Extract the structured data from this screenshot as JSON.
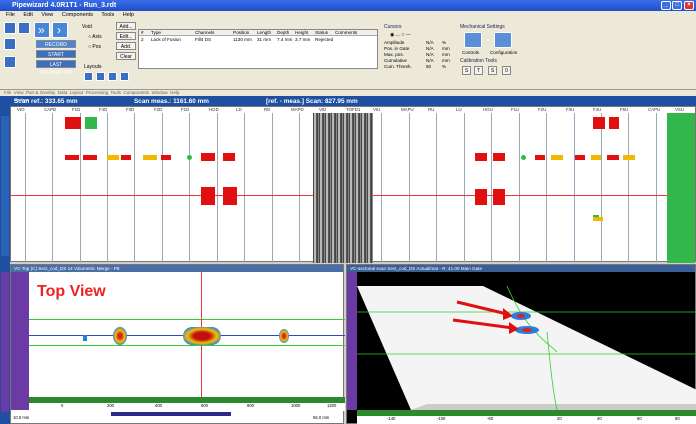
{
  "window": {
    "title": "Pipewizard 4.0R1T1 - Run_3.rdt"
  },
  "menu": [
    "File",
    "Edit",
    "View",
    "Components",
    "Tools",
    "Help"
  ],
  "toolbar": {
    "record_label": "RECORD",
    "start_inspection_label": "START INSPECTION",
    "last_calibration_label": "LAST CALIBRATION",
    "void_label": "Void",
    "axis_label": "Axis",
    "pos_label": "Pos",
    "layouts_label": "Layouts",
    "add_label": "Add...",
    "edit_label": "Edit...",
    "add_info_label": "Add. Info...",
    "clear_label": "Clear",
    "cursors_label": "Cursors",
    "mech_settings_label": "Mechanical Settings",
    "controls_label": "Controls",
    "configuration_label": "Configuration",
    "calib_tools_label": "Calibration Tools"
  },
  "defect_table": {
    "columns": [
      "#",
      "Type",
      "Channels",
      "Position",
      "Length",
      "Depth",
      "Height",
      "Status",
      "Comments"
    ],
    "rows": [
      [
        "2",
        "Lack of Fusion",
        "Fill4 DS",
        "1130 mm",
        "31 mm",
        "7.4 mm",
        "3.7 mm",
        "Rejected",
        ""
      ]
    ]
  },
  "cursor_readout": {
    "rows": [
      {
        "label": "Amplitude",
        "value": "N/A",
        "unit": "%"
      },
      {
        "label": "Pos. in Gate",
        "value": "N/A",
        "unit": "mm"
      },
      {
        "label": "Max. pos.",
        "value": "N/A",
        "unit": "mm"
      },
      {
        "label": "Cumulative",
        "value": "N/A",
        "unit": "mm"
      },
      {
        "label": "Cum. Thresh.",
        "value": "50",
        "unit": "%"
      }
    ]
  },
  "tabbar": [
    "File",
    "View",
    "Part & Overlay",
    "Data",
    "Layout",
    "Processing",
    "Tools",
    "Components",
    "Window",
    "Help"
  ],
  "scan_info": {
    "medium_label": "Medium",
    "scan_ref": "Scan ref.: 333.65 mm",
    "scan_meas": "Scan meas.: 1161.60 mm",
    "ref_meas": "[ref. - meas.] Scan: 827.95 mm"
  },
  "lanes": [
    "VIO",
    "CAPD",
    "F1D",
    "F4D",
    "F3D",
    "F2D",
    "F1D",
    "HOD",
    "LD",
    "RD",
    "MAPD",
    "VID",
    "TOFD1",
    "VIU",
    "MAPU",
    "RU",
    "LU",
    "HOU",
    "F1U",
    "F2U",
    "F3U",
    "F4U",
    "F5U",
    "CAPU",
    "VSU"
  ],
  "left_panel": {
    "title": "VC-Top (C) Sect_cod_DS 14 Volumetric Merge - P8",
    "overlay_text": "Top View",
    "axis_ticks": [
      "0",
      "200",
      "400",
      "600",
      "800",
      "1000",
      "1200"
    ],
    "scale_left": "10.0 mm",
    "scale_right": "56.0 mm"
  },
  "right_panel": {
    "title": "VC-sectorial scan Sect_cod_DS Actual/mat - R: 41.00 Main Gate",
    "axis_ticks": [
      "-140",
      "-100",
      "-60",
      "20",
      "40",
      "60",
      "80"
    ]
  },
  "colors": {
    "title_blue": "#1f4fc7",
    "scan_bar": "#1e4fa0",
    "defect_red": "#e01010",
    "defect_yellow": "#f2b800",
    "accent_green": "#32b84a",
    "purple": "#6b3aa5"
  }
}
